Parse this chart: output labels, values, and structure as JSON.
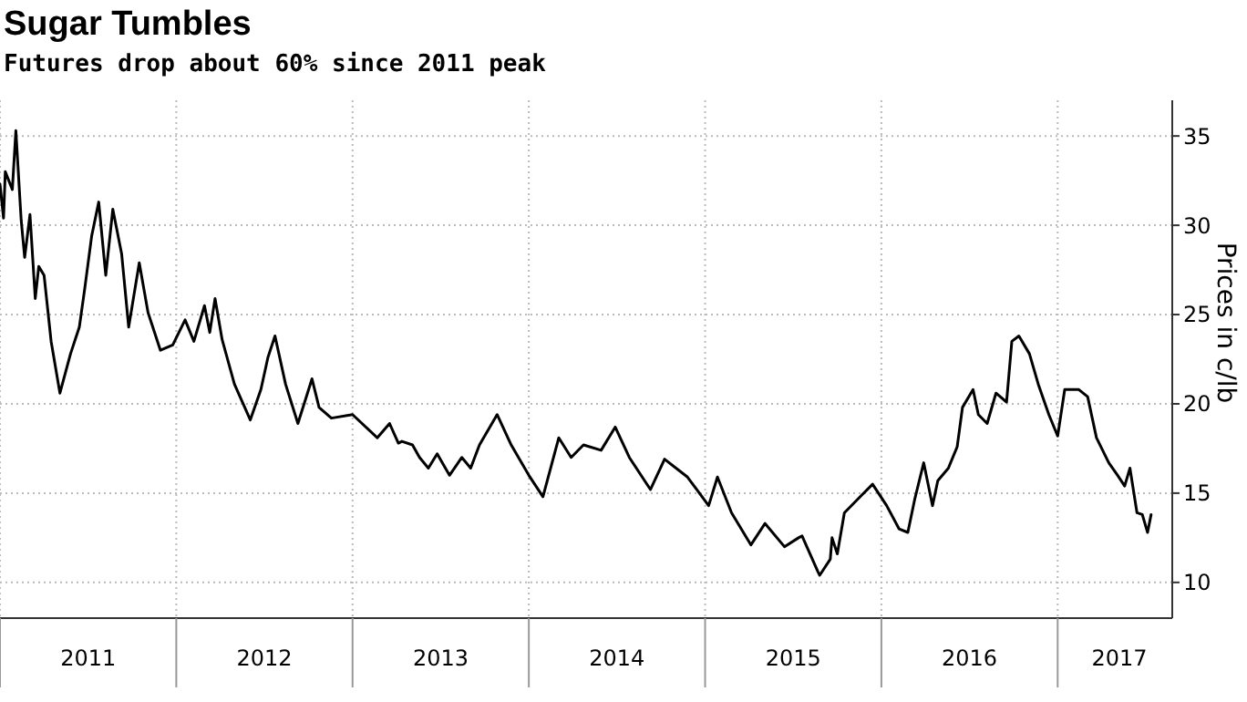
{
  "chart_data": {
    "type": "line",
    "title": "Sugar Tumbles",
    "subtitle": "Futures drop about 60% since 2011 peak",
    "ylabel": "Prices in c/lb",
    "xlim": [
      2011,
      2017.65
    ],
    "ylim": [
      8,
      37
    ],
    "xticks": [
      {
        "value": 2011,
        "label": null
      },
      {
        "value": 2011.5,
        "label": "2011"
      },
      {
        "value": 2012,
        "label": null
      },
      {
        "value": 2012.5,
        "label": "2012"
      },
      {
        "value": 2013,
        "label": null
      },
      {
        "value": 2013.5,
        "label": "2013"
      },
      {
        "value": 2014,
        "label": null
      },
      {
        "value": 2014.5,
        "label": "2014"
      },
      {
        "value": 2015,
        "label": null
      },
      {
        "value": 2015.5,
        "label": "2015"
      },
      {
        "value": 2016,
        "label": null
      },
      {
        "value": 2016.5,
        "label": "2016"
      },
      {
        "value": 2017,
        "label": null
      },
      {
        "value": 2017.35,
        "label": "2017"
      }
    ],
    "yticks": [
      10,
      15,
      20,
      25,
      30,
      35
    ],
    "grid": true,
    "line_style": "solid",
    "series": [
      {
        "color": "#000000",
        "x": [
          2011.0,
          2011.02,
          2011.03,
          2011.07,
          2011.09,
          2011.12,
          2011.14,
          2011.17,
          2011.2,
          2011.22,
          2011.25,
          2011.29,
          2011.34,
          2011.4,
          2011.45,
          2011.48,
          2011.52,
          2011.56,
          2011.6,
          2011.64,
          2011.69,
          2011.73,
          2011.79,
          2011.84,
          2011.91,
          2011.98,
          2012.05,
          2012.1,
          2012.16,
          2012.19,
          2012.22,
          2012.26,
          2012.33,
          2012.42,
          2012.48,
          2012.52,
          2012.56,
          2012.62,
          2012.69,
          2012.77,
          2012.81,
          2012.88,
          2013.0,
          2013.14,
          2013.21,
          2013.26,
          2013.28,
          2013.34,
          2013.38,
          2013.43,
          2013.48,
          2013.55,
          2013.62,
          2013.67,
          2013.72,
          2013.82,
          2013.9,
          2014.0,
          2014.08,
          2014.17,
          2014.24,
          2014.31,
          2014.41,
          2014.49,
          2014.57,
          2014.69,
          2014.77,
          2014.9,
          2015.02,
          2015.07,
          2015.15,
          2015.26,
          2015.34,
          2015.45,
          2015.53,
          2015.55,
          2015.64,
          2015.65,
          2015.71,
          2015.72,
          2015.75,
          2015.79,
          2015.88,
          2015.95,
          2016.03,
          2016.1,
          2016.15,
          2016.19,
          2016.24,
          2016.29,
          2016.32,
          2016.38,
          2016.43,
          2016.46,
          2016.52,
          2016.55,
          2016.6,
          2016.65,
          2016.71,
          2016.74,
          2016.78,
          2016.84,
          2016.89,
          2016.95,
          2017.0,
          2017.04,
          2017.12,
          2017.17,
          2017.22,
          2017.29,
          2017.34,
          2017.38,
          2017.41,
          2017.45,
          2017.48,
          2017.51,
          2017.53
        ],
        "values": [
          32.3,
          30.4,
          33.0,
          32.0,
          35.3,
          30.3,
          28.2,
          30.6,
          25.9,
          27.7,
          27.2,
          23.5,
          20.6,
          22.8,
          24.3,
          26.4,
          29.4,
          31.3,
          27.2,
          30.9,
          28.4,
          24.3,
          27.9,
          25.1,
          23.0,
          23.3,
          24.7,
          23.5,
          25.5,
          24.0,
          25.9,
          23.6,
          21.1,
          19.1,
          20.8,
          22.6,
          23.8,
          21.1,
          18.9,
          21.4,
          19.8,
          19.2,
          19.4,
          18.1,
          18.9,
          17.8,
          17.9,
          17.7,
          17.0,
          16.4,
          17.2,
          16.0,
          17.0,
          16.4,
          17.7,
          19.4,
          17.7,
          16.0,
          14.8,
          18.1,
          17.0,
          17.7,
          17.4,
          18.7,
          17.0,
          15.2,
          16.9,
          15.9,
          14.3,
          15.9,
          13.9,
          12.1,
          13.3,
          12.0,
          12.5,
          12.6,
          10.6,
          10.4,
          11.3,
          12.5,
          11.6,
          13.9,
          14.8,
          15.5,
          14.3,
          13.0,
          12.8,
          14.7,
          16.7,
          14.3,
          15.7,
          16.4,
          17.6,
          19.8,
          20.8,
          19.4,
          18.9,
          20.6,
          20.1,
          23.5,
          23.8,
          22.8,
          21.1,
          19.4,
          18.2,
          20.8,
          20.8,
          20.4,
          18.1,
          16.7,
          16.0,
          15.4,
          16.4,
          13.9,
          13.8,
          12.8,
          13.8
        ]
      }
    ]
  }
}
